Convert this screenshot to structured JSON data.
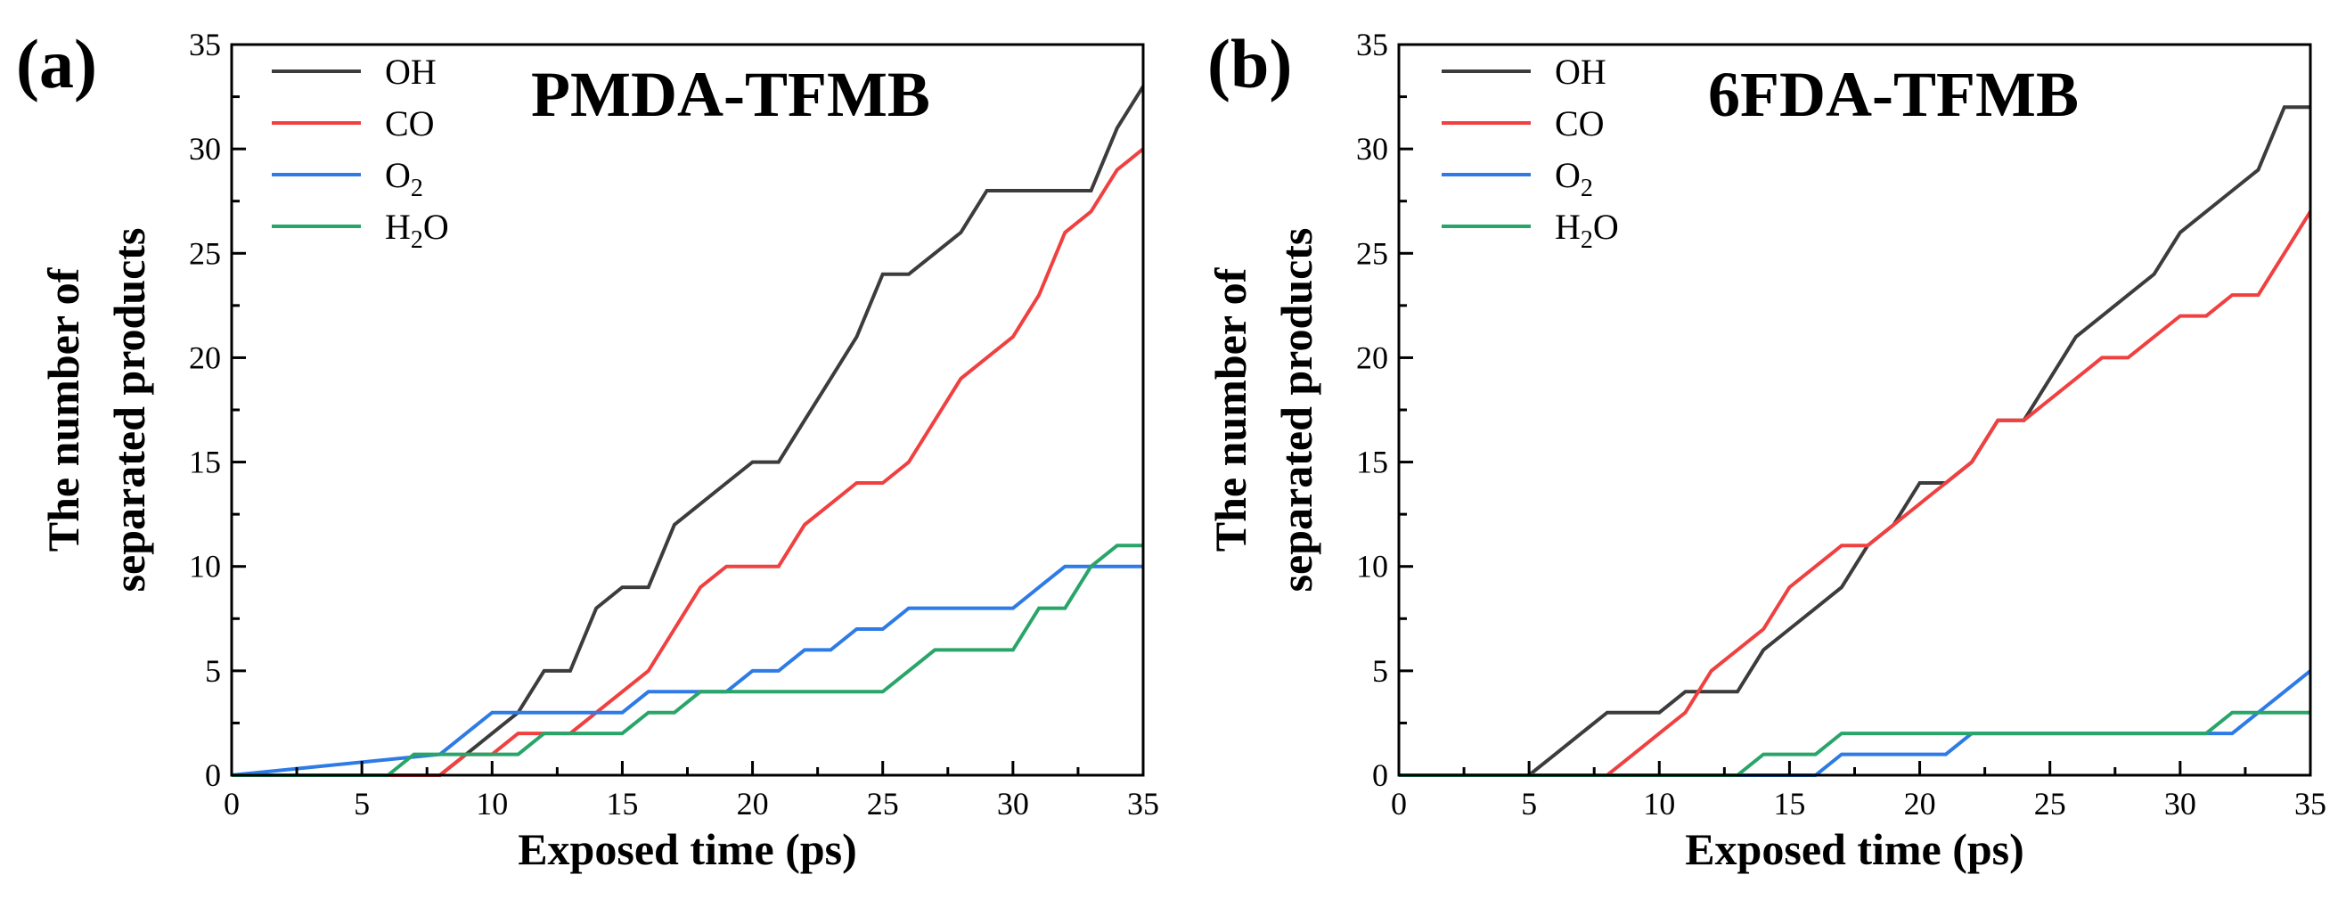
{
  "chart_data": [
    {
      "panel_label": "(a)",
      "type": "line",
      "title": "PMDA-TFMB",
      "xlabel": "Exposed time (ps)",
      "ylabel": [
        "The number of",
        "separated products"
      ],
      "xlim": [
        0,
        35
      ],
      "ylim": [
        0,
        35
      ],
      "xticks": [
        0,
        5,
        10,
        15,
        20,
        25,
        30,
        35
      ],
      "yticks": [
        0,
        5,
        10,
        15,
        20,
        25,
        30,
        35
      ],
      "grid": false,
      "legend_position": "top-left",
      "series": [
        {
          "name": "OH",
          "color": "#3c3c3c",
          "x": [
            0,
            8,
            9,
            10,
            11,
            12,
            13,
            14,
            15,
            16,
            17,
            18,
            19,
            20,
            21,
            22,
            23,
            24,
            25,
            26,
            27,
            28,
            29,
            30,
            31,
            32,
            33,
            34,
            35
          ],
          "y": [
            0,
            0,
            1,
            2,
            3,
            5,
            5,
            8,
            9,
            9,
            12,
            13,
            14,
            15,
            15,
            17,
            19,
            21,
            24,
            24,
            25,
            26,
            28,
            28,
            28,
            28,
            28,
            31,
            33
          ]
        },
        {
          "name": "CO",
          "color": "#f04040",
          "x": [
            0,
            8,
            9,
            10,
            11,
            12,
            13,
            14,
            15,
            16,
            17,
            18,
            19,
            20,
            21,
            22,
            23,
            24,
            25,
            26,
            27,
            28,
            29,
            30,
            31,
            32,
            33,
            34,
            35
          ],
          "y": [
            0,
            0,
            1,
            1,
            2,
            2,
            2,
            3,
            4,
            5,
            7,
            9,
            10,
            10,
            10,
            12,
            13,
            14,
            14,
            15,
            17,
            19,
            20,
            21,
            23,
            26,
            27,
            29,
            30
          ]
        },
        {
          "name": "O2",
          "label_main": "O",
          "label_sub": "2",
          "color": "#2e7be6",
          "x": [
            0,
            8,
            9,
            10,
            11,
            12,
            13,
            14,
            15,
            16,
            17,
            18,
            19,
            20,
            21,
            22,
            23,
            24,
            25,
            26,
            27,
            28,
            29,
            30,
            31,
            32,
            33,
            34,
            35
          ],
          "y": [
            0,
            1,
            2,
            3,
            3,
            3,
            3,
            3,
            3,
            4,
            4,
            4,
            4,
            5,
            5,
            6,
            6,
            7,
            7,
            8,
            8,
            8,
            8,
            8,
            9,
            10,
            10,
            10,
            10
          ]
        },
        {
          "name": "H2O",
          "label_main": "H",
          "label_sub": "2",
          "label_tail": "O",
          "color": "#2aa56a",
          "x": [
            0,
            6,
            7,
            8,
            9,
            10,
            11,
            12,
            13,
            14,
            15,
            16,
            17,
            18,
            19,
            20,
            21,
            22,
            23,
            24,
            25,
            26,
            27,
            28,
            29,
            30,
            31,
            32,
            33,
            34,
            35
          ],
          "y": [
            0,
            0,
            1,
            1,
            1,
            1,
            1,
            2,
            2,
            2,
            2,
            3,
            3,
            4,
            4,
            4,
            4,
            4,
            4,
            4,
            4,
            5,
            6,
            6,
            6,
            6,
            8,
            8,
            10,
            11,
            11
          ]
        }
      ]
    },
    {
      "panel_label": "(b)",
      "type": "line",
      "title": "6FDA-TFMB",
      "xlabel": "Exposed time (ps)",
      "ylabel": [
        "The number of",
        "separated products"
      ],
      "xlim": [
        0,
        35
      ],
      "ylim": [
        0,
        35
      ],
      "xticks": [
        0,
        5,
        10,
        15,
        20,
        25,
        30,
        35
      ],
      "yticks": [
        0,
        5,
        10,
        15,
        20,
        25,
        30,
        35
      ],
      "grid": false,
      "legend_position": "top-left",
      "series": [
        {
          "name": "OH",
          "color": "#3c3c3c",
          "x": [
            0,
            5,
            6,
            7,
            8,
            9,
            10,
            11,
            12,
            13,
            14,
            15,
            16,
            17,
            18,
            19,
            20,
            21,
            22,
            23,
            24,
            25,
            26,
            27,
            28,
            29,
            30,
            31,
            32,
            33,
            34,
            35
          ],
          "y": [
            0,
            0,
            1,
            2,
            3,
            3,
            3,
            4,
            4,
            4,
            6,
            7,
            8,
            9,
            11,
            12,
            14,
            14,
            15,
            17,
            17,
            19,
            21,
            22,
            23,
            24,
            26,
            27,
            28,
            29,
            32,
            32
          ]
        },
        {
          "name": "CO",
          "color": "#f04040",
          "x": [
            0,
            8,
            9,
            10,
            11,
            12,
            13,
            14,
            15,
            16,
            17,
            18,
            19,
            20,
            21,
            22,
            23,
            24,
            25,
            26,
            27,
            28,
            29,
            30,
            31,
            32,
            33,
            34,
            35
          ],
          "y": [
            0,
            0,
            1,
            2,
            3,
            5,
            6,
            7,
            9,
            10,
            11,
            11,
            12,
            13,
            14,
            15,
            17,
            17,
            18,
            19,
            20,
            20,
            21,
            22,
            22,
            23,
            23,
            25,
            27
          ]
        },
        {
          "name": "O2",
          "label_main": "O",
          "label_sub": "2",
          "color": "#2e7be6",
          "x": [
            0,
            16,
            17,
            18,
            19,
            20,
            21,
            22,
            23,
            24,
            25,
            26,
            27,
            28,
            29,
            30,
            31,
            32,
            33,
            34,
            35
          ],
          "y": [
            0,
            0,
            1,
            1,
            1,
            1,
            1,
            2,
            2,
            2,
            2,
            2,
            2,
            2,
            2,
            2,
            2,
            2,
            3,
            4,
            5
          ]
        },
        {
          "name": "H2O",
          "label_main": "H",
          "label_sub": "2",
          "label_tail": "O",
          "color": "#2aa56a",
          "x": [
            0,
            13,
            14,
            15,
            16,
            17,
            18,
            19,
            20,
            21,
            22,
            23,
            24,
            25,
            26,
            27,
            28,
            29,
            30,
            31,
            32,
            33,
            34,
            35
          ],
          "y": [
            0,
            0,
            1,
            1,
            1,
            2,
            2,
            2,
            2,
            2,
            2,
            2,
            2,
            2,
            2,
            2,
            2,
            2,
            2,
            2,
            3,
            3,
            3,
            3
          ]
        }
      ]
    }
  ]
}
